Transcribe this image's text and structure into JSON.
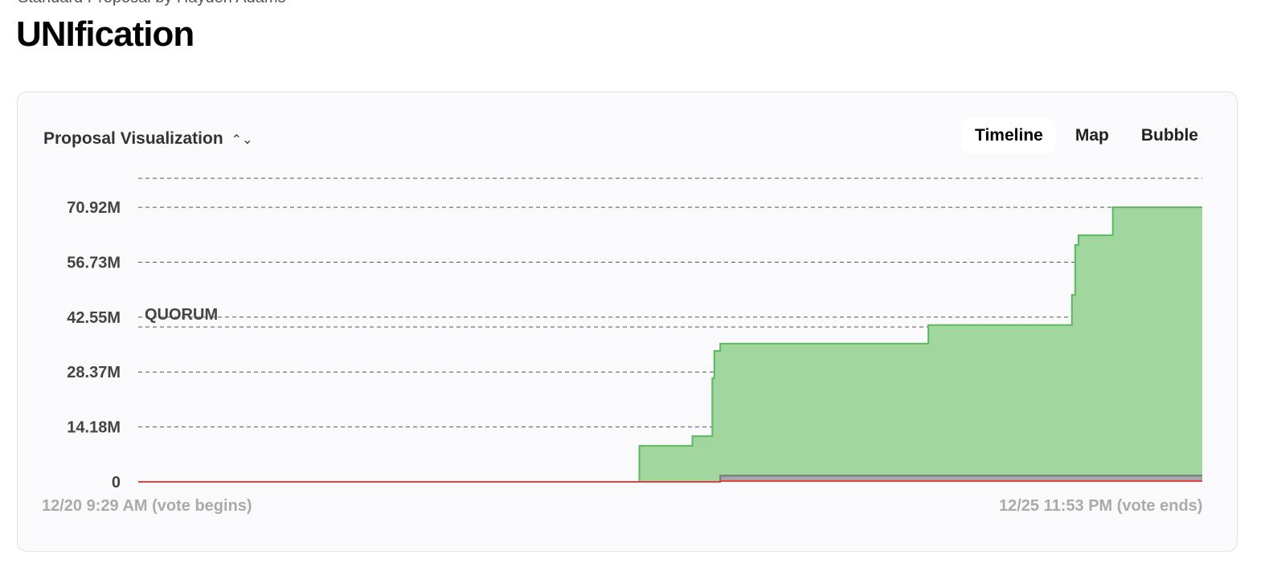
{
  "header": {
    "subtitle": "Standard Proposal by Hayden Adams",
    "title": "UNIfication"
  },
  "card": {
    "selector_label": "Proposal Visualization",
    "selector_icon": "chevron-up-down-icon",
    "tabs": [
      {
        "label": "Timeline",
        "active": true
      },
      {
        "label": "Map",
        "active": false
      },
      {
        "label": "Bubble",
        "active": false
      }
    ]
  },
  "chart_data": {
    "type": "area",
    "xlabels": {
      "start": "12/20 9:29 AM (vote begins)",
      "end": "12/25 11:53 PM (vote ends)"
    },
    "x_range": [
      "12/20 09:29",
      "12/25 23:53"
    ],
    "ylim": [
      0,
      78.4
    ],
    "yticks": [
      {
        "v": 0,
        "label": "0"
      },
      {
        "v": 14.18,
        "label": "14.18M"
      },
      {
        "v": 28.37,
        "label": "28.37M"
      },
      {
        "v": 42.55,
        "label": "42.55M"
      },
      {
        "v": 56.73,
        "label": "56.73M"
      },
      {
        "v": 70.92,
        "label": "70.92M"
      }
    ],
    "y_unit": "M",
    "grid": true,
    "quorum": {
      "label": "QUORUM",
      "value": 40
    },
    "series": [
      {
        "color": "#5cb85c",
        "fill": "#a1d69e",
        "points": [
          [
            "12/20 09:29",
            0
          ],
          [
            "12/23 00:47",
            9.3
          ],
          [
            "12/23 07:29",
            11.8
          ],
          [
            "12/23 10:00",
            26.8
          ],
          [
            "12/23 10:15",
            33.8
          ],
          [
            "12/23 11:00",
            35.7
          ],
          [
            "12/24 13:17",
            40.5
          ],
          [
            "12/25 07:25",
            48.3
          ],
          [
            "12/25 07:50",
            61.2
          ],
          [
            "12/25 08:15",
            63.7
          ],
          [
            "12/25 12:35",
            70.92
          ],
          [
            "12/25 23:53",
            70.92
          ]
        ]
      },
      {
        "color": "#777777",
        "fill": "#a8a6ac",
        "points": [
          [
            "12/20 09:29",
            0
          ],
          [
            "12/23 11:00",
            1.6
          ],
          [
            "12/25 23:53",
            1.6
          ]
        ]
      },
      {
        "color": "#e0443a",
        "fill": "#e0443a",
        "points": [
          [
            "12/20 09:29",
            0
          ],
          [
            "12/23 11:00",
            0.2
          ],
          [
            "12/25 23:53",
            0.2
          ]
        ]
      }
    ]
  }
}
